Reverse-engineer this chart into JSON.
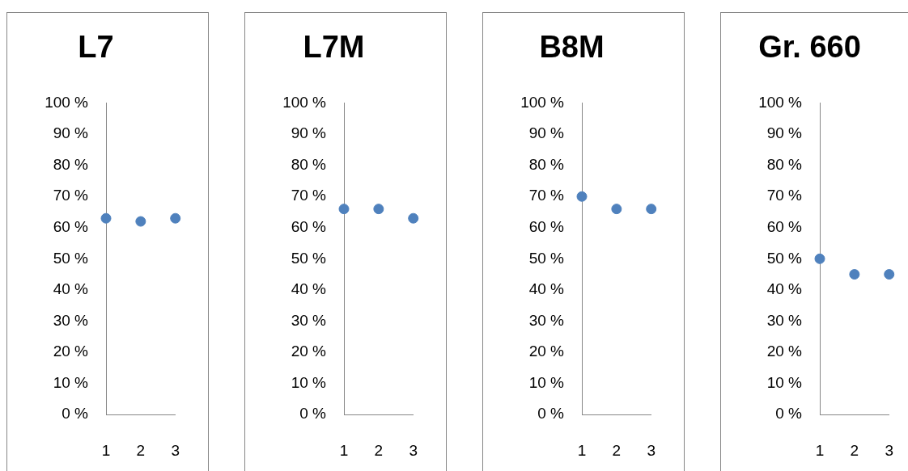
{
  "chart_data": [
    {
      "type": "scatter",
      "title": "L7",
      "x": [
        1,
        2,
        3
      ],
      "values": [
        63,
        62,
        63
      ],
      "color": "#4f81bd",
      "marker": "circle",
      "xlim": [
        1,
        3
      ],
      "xticks": [
        1,
        2,
        3
      ],
      "ylim": [
        0,
        100
      ],
      "yticks": [
        {
          "value": 0,
          "label": "0 %"
        },
        {
          "value": 10,
          "label": "10 %"
        },
        {
          "value": 20,
          "label": "20 %"
        },
        {
          "value": 30,
          "label": "30 %"
        },
        {
          "value": 40,
          "label": "40 %"
        },
        {
          "value": 50,
          "label": "50 %"
        },
        {
          "value": 60,
          "label": "60 %"
        },
        {
          "value": 70,
          "label": "70 %"
        },
        {
          "value": 80,
          "label": "80 %"
        },
        {
          "value": 90,
          "label": "90 %"
        },
        {
          "value": 100,
          "label": "100 %"
        }
      ]
    },
    {
      "type": "scatter",
      "title": "L7M",
      "x": [
        1,
        2,
        3
      ],
      "values": [
        66,
        66,
        63
      ],
      "color": "#4f81bd",
      "marker": "circle",
      "xlim": [
        1,
        3
      ],
      "xticks": [
        1,
        2,
        3
      ],
      "ylim": [
        0,
        100
      ],
      "yticks": [
        {
          "value": 0,
          "label": "0 %"
        },
        {
          "value": 10,
          "label": "10 %"
        },
        {
          "value": 20,
          "label": "20 %"
        },
        {
          "value": 30,
          "label": "30 %"
        },
        {
          "value": 40,
          "label": "40 %"
        },
        {
          "value": 50,
          "label": "50 %"
        },
        {
          "value": 60,
          "label": "60 %"
        },
        {
          "value": 70,
          "label": "70 %"
        },
        {
          "value": 80,
          "label": "80 %"
        },
        {
          "value": 90,
          "label": "90 %"
        },
        {
          "value": 100,
          "label": "100 %"
        }
      ]
    },
    {
      "type": "scatter",
      "title": "B8M",
      "x": [
        1,
        2,
        3
      ],
      "values": [
        70,
        66,
        66
      ],
      "color": "#4f81bd",
      "marker": "circle",
      "xlim": [
        1,
        3
      ],
      "xticks": [
        1,
        2,
        3
      ],
      "ylim": [
        0,
        100
      ],
      "yticks": [
        {
          "value": 0,
          "label": "0 %"
        },
        {
          "value": 10,
          "label": "10 %"
        },
        {
          "value": 20,
          "label": "20 %"
        },
        {
          "value": 30,
          "label": "30 %"
        },
        {
          "value": 40,
          "label": "40 %"
        },
        {
          "value": 50,
          "label": "50 %"
        },
        {
          "value": 60,
          "label": "60 %"
        },
        {
          "value": 70,
          "label": "70 %"
        },
        {
          "value": 80,
          "label": "80 %"
        },
        {
          "value": 90,
          "label": "90 %"
        },
        {
          "value": 100,
          "label": "100 %"
        }
      ]
    },
    {
      "type": "scatter",
      "title": "Gr. 660",
      "x": [
        1,
        2,
        3
      ],
      "values": [
        50,
        45,
        45
      ],
      "color": "#4f81bd",
      "marker": "circle",
      "xlim": [
        1,
        3
      ],
      "xticks": [
        1,
        2,
        3
      ],
      "ylim": [
        0,
        100
      ],
      "yticks": [
        {
          "value": 0,
          "label": "0 %"
        },
        {
          "value": 10,
          "label": "10 %"
        },
        {
          "value": 20,
          "label": "20 %"
        },
        {
          "value": 30,
          "label": "30 %"
        },
        {
          "value": 40,
          "label": "40 %"
        },
        {
          "value": 50,
          "label": "50 %"
        },
        {
          "value": 60,
          "label": "60 %"
        },
        {
          "value": 70,
          "label": "70 %"
        },
        {
          "value": 80,
          "label": "80 %"
        },
        {
          "value": 90,
          "label": "90 %"
        },
        {
          "value": 100,
          "label": "100 %"
        }
      ]
    }
  ]
}
